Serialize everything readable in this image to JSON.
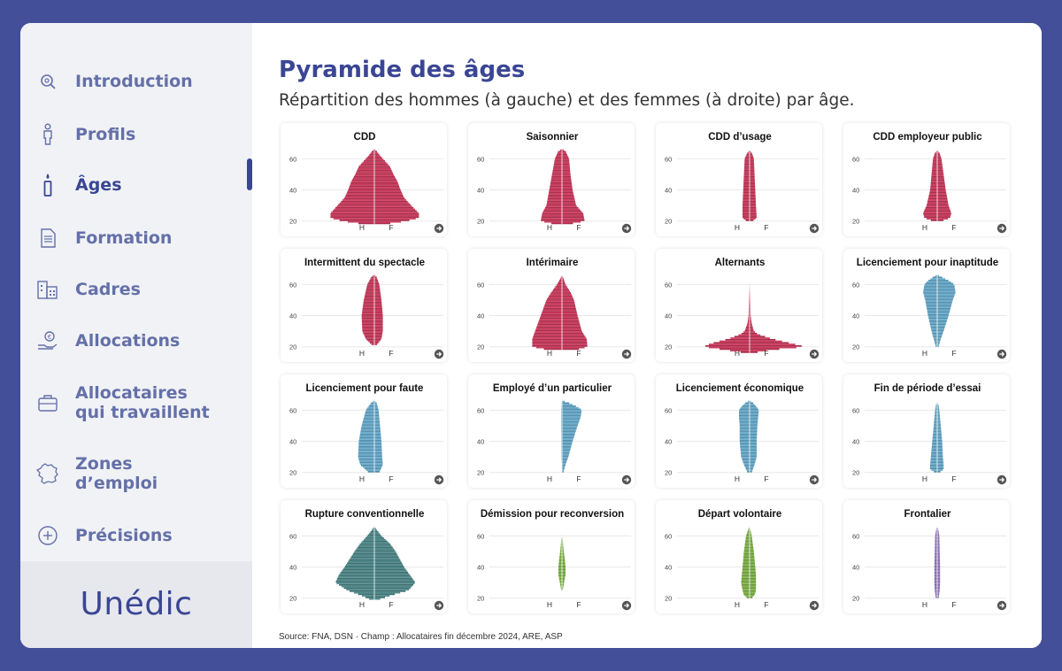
{
  "nav": [
    {
      "key": "introduction",
      "label": "Introduction",
      "label2": "",
      "icon": "search-icon",
      "active": false
    },
    {
      "key": "profils",
      "label": "Profils",
      "label2": "",
      "icon": "person-icon",
      "active": false
    },
    {
      "key": "ages",
      "label": "Âges",
      "label2": "",
      "icon": "candle-icon",
      "active": true
    },
    {
      "key": "formation",
      "label": "Formation",
      "label2": "",
      "icon": "document-icon",
      "active": false
    },
    {
      "key": "cadres",
      "label": "Cadres",
      "label2": "",
      "icon": "building-icon",
      "active": false
    },
    {
      "key": "allocations",
      "label": "Allocations",
      "label2": "",
      "icon": "hand-coin-icon",
      "active": false
    },
    {
      "key": "allocataires",
      "label": "Allocataires",
      "label2": "qui travaillent",
      "icon": "briefcase-icon",
      "active": false
    },
    {
      "key": "zones",
      "label": "Zones",
      "label2": "d’emploi",
      "icon": "france-map-icon",
      "active": false
    },
    {
      "key": "precisions",
      "label": "Précisions",
      "label2": "",
      "icon": "plus-circle-icon",
      "active": false
    }
  ],
  "logo": "Unédic",
  "header": {
    "title": "Pyramide des âges",
    "subtitle": "Répartition des hommes (à gauche) et des femmes (à droite) par âge."
  },
  "source": "Source: FNA, DSN · Champ : Allocataires fin décembre 2024, ARE, ASP",
  "colors": {
    "pink": "#cf3a5e",
    "blue": "#6aaed0",
    "teal": "#4f8a8b",
    "green": "#82b74b",
    "purple": "#9a7cc2",
    "accent": "#3a4694",
    "frame": "#434f99"
  },
  "chart_data": [
    {
      "type": "pyramid",
      "title": "CDD",
      "color": "pink",
      "male_label": "H",
      "female_label": "F",
      "yticks": [
        20,
        40,
        60
      ],
      "ylim": [
        17,
        67
      ],
      "ages": [
        18,
        20,
        22,
        25,
        30,
        35,
        40,
        45,
        50,
        55,
        58,
        62,
        65,
        66
      ],
      "male": [
        0.15,
        0.45,
        0.62,
        0.62,
        0.52,
        0.42,
        0.37,
        0.33,
        0.27,
        0.22,
        0.16,
        0.08,
        0.03,
        0
      ],
      "female": [
        0.15,
        0.45,
        0.63,
        0.63,
        0.52,
        0.42,
        0.37,
        0.33,
        0.27,
        0.22,
        0.16,
        0.08,
        0.03,
        0
      ]
    },
    {
      "type": "pyramid",
      "title": "Saisonnier",
      "color": "pink",
      "male_label": "H",
      "female_label": "F",
      "yticks": [
        20,
        40,
        60
      ],
      "ylim": [
        17,
        67
      ],
      "ages": [
        18,
        20,
        25,
        30,
        40,
        50,
        60,
        65,
        66
      ],
      "male": [
        0.1,
        0.3,
        0.28,
        0.22,
        0.18,
        0.14,
        0.1,
        0.05,
        0
      ],
      "female": [
        0.1,
        0.32,
        0.3,
        0.2,
        0.15,
        0.12,
        0.1,
        0.05,
        0
      ]
    },
    {
      "type": "pyramid",
      "title": "CDD d’usage",
      "color": "pink",
      "male_label": "H",
      "female_label": "F",
      "yticks": [
        20,
        40,
        60
      ],
      "ylim": [
        17,
        67
      ],
      "ages": [
        20,
        22,
        30,
        40,
        50,
        60,
        64,
        65
      ],
      "male": [
        0.04,
        0.1,
        0.1,
        0.09,
        0.08,
        0.07,
        0.03,
        0
      ],
      "female": [
        0.04,
        0.1,
        0.09,
        0.08,
        0.07,
        0.06,
        0.03,
        0
      ]
    },
    {
      "type": "pyramid",
      "title": "CDD employeur public",
      "color": "pink",
      "male_label": "H",
      "female_label": "F",
      "yticks": [
        20,
        40,
        60
      ],
      "ylim": [
        17,
        67
      ],
      "ages": [
        20,
        22,
        25,
        30,
        40,
        50,
        60,
        64,
        65
      ],
      "male": [
        0.06,
        0.18,
        0.2,
        0.15,
        0.1,
        0.08,
        0.06,
        0.03,
        0
      ],
      "female": [
        0.06,
        0.18,
        0.2,
        0.16,
        0.12,
        0.09,
        0.06,
        0.03,
        0
      ]
    },
    {
      "type": "pyramid",
      "title": "Intermittent du spectacle",
      "color": "pink",
      "male_label": "H",
      "female_label": "F",
      "yticks": [
        20,
        40,
        60
      ],
      "ylim": [
        17,
        67
      ],
      "ages": [
        21,
        25,
        30,
        40,
        50,
        60,
        65,
        66
      ],
      "male": [
        0.03,
        0.12,
        0.17,
        0.18,
        0.15,
        0.1,
        0.04,
        0
      ],
      "female": [
        0.03,
        0.1,
        0.12,
        0.12,
        0.1,
        0.07,
        0.03,
        0
      ]
    },
    {
      "type": "pyramid",
      "title": "Intérimaire",
      "color": "pink",
      "male_label": "H",
      "female_label": "F",
      "yticks": [
        20,
        40,
        60
      ],
      "ylim": [
        17,
        67
      ],
      "ages": [
        18,
        20,
        25,
        30,
        40,
        50,
        55,
        60,
        64,
        66
      ],
      "male": [
        0.2,
        0.42,
        0.42,
        0.38,
        0.3,
        0.22,
        0.15,
        0.07,
        0.02,
        0
      ],
      "female": [
        0.2,
        0.36,
        0.35,
        0.28,
        0.22,
        0.17,
        0.12,
        0.05,
        0.02,
        0
      ]
    },
    {
      "type": "pyramid",
      "title": "Alternants",
      "color": "pink",
      "male_label": "H",
      "female_label": "F",
      "yticks": [
        20,
        40,
        60
      ],
      "ylim": [
        17,
        67
      ],
      "ages": [
        16,
        18,
        20,
        22,
        25,
        28,
        30,
        35,
        40,
        50,
        60,
        62
      ],
      "male": [
        0.05,
        0.35,
        0.65,
        0.55,
        0.3,
        0.13,
        0.07,
        0.03,
        0.015,
        0.01,
        0.005,
        0
      ],
      "female": [
        0.05,
        0.3,
        0.78,
        0.6,
        0.32,
        0.12,
        0.06,
        0.03,
        0.015,
        0.01,
        0.005,
        0
      ]
    },
    {
      "type": "pyramid",
      "title": "Licenciement pour inaptitude",
      "color": "blue",
      "male_label": "H",
      "female_label": "F",
      "yticks": [
        20,
        40,
        60
      ],
      "ylim": [
        17,
        67
      ],
      "ages": [
        20,
        25,
        30,
        40,
        50,
        55,
        60,
        62,
        65,
        66
      ],
      "male": [
        0.02,
        0.05,
        0.08,
        0.13,
        0.17,
        0.2,
        0.18,
        0.14,
        0.05,
        0
      ],
      "female": [
        0.02,
        0.05,
        0.09,
        0.16,
        0.22,
        0.26,
        0.24,
        0.18,
        0.05,
        0
      ]
    },
    {
      "type": "pyramid",
      "title": "Licenciement pour faute",
      "color": "blue",
      "male_label": "H",
      "female_label": "F",
      "yticks": [
        20,
        40,
        60
      ],
      "ylim": [
        17,
        67
      ],
      "ages": [
        20,
        25,
        30,
        40,
        50,
        60,
        65,
        66
      ],
      "male": [
        0.08,
        0.2,
        0.23,
        0.22,
        0.18,
        0.12,
        0.04,
        0
      ],
      "female": [
        0.07,
        0.12,
        0.11,
        0.1,
        0.08,
        0.06,
        0.03,
        0
      ]
    },
    {
      "type": "pyramid",
      "title": "Employé d’un particulier",
      "color": "blue",
      "male_label": "H",
      "female_label": "F",
      "yticks": [
        20,
        40,
        60
      ],
      "ylim": [
        17,
        67
      ],
      "ages": [
        20,
        25,
        30,
        40,
        50,
        55,
        60,
        62,
        65,
        66
      ],
      "male": [
        0.005,
        0.005,
        0.01,
        0.01,
        0.012,
        0.012,
        0.012,
        0.01,
        0.005,
        0
      ],
      "female": [
        0.02,
        0.05,
        0.09,
        0.15,
        0.22,
        0.26,
        0.28,
        0.22,
        0.08,
        0
      ]
    },
    {
      "type": "pyramid",
      "title": "Licenciement économique",
      "color": "blue",
      "male_label": "H",
      "female_label": "F",
      "yticks": [
        20,
        40,
        60
      ],
      "ylim": [
        17,
        67
      ],
      "ages": [
        20,
        25,
        30,
        40,
        50,
        55,
        60,
        62,
        65,
        66
      ],
      "male": [
        0.03,
        0.08,
        0.12,
        0.14,
        0.14,
        0.15,
        0.15,
        0.12,
        0.05,
        0
      ],
      "female": [
        0.03,
        0.07,
        0.1,
        0.1,
        0.11,
        0.12,
        0.13,
        0.1,
        0.04,
        0
      ]
    },
    {
      "type": "pyramid",
      "title": "Fin de période d’essai",
      "color": "blue",
      "male_label": "H",
      "female_label": "F",
      "yticks": [
        20,
        40,
        60
      ],
      "ylim": [
        17,
        67
      ],
      "ages": [
        20,
        22,
        25,
        30,
        40,
        50,
        60,
        64,
        65
      ],
      "male": [
        0.03,
        0.1,
        0.1,
        0.09,
        0.07,
        0.05,
        0.03,
        0.015,
        0
      ],
      "female": [
        0.03,
        0.09,
        0.09,
        0.08,
        0.07,
        0.05,
        0.03,
        0.015,
        0
      ]
    },
    {
      "type": "pyramid",
      "title": "Rupture conventionnelle",
      "color": "teal",
      "male_label": "H",
      "female_label": "F",
      "yticks": [
        20,
        40,
        60
      ],
      "ylim": [
        17,
        67
      ],
      "ages": [
        19,
        22,
        25,
        30,
        35,
        40,
        45,
        50,
        55,
        60,
        64,
        66
      ],
      "male": [
        0.05,
        0.2,
        0.38,
        0.55,
        0.5,
        0.42,
        0.35,
        0.28,
        0.2,
        0.1,
        0.03,
        0
      ],
      "female": [
        0.05,
        0.25,
        0.48,
        0.58,
        0.5,
        0.42,
        0.36,
        0.3,
        0.22,
        0.1,
        0.03,
        0
      ]
    },
    {
      "type": "pyramid",
      "title": "Démission pour reconversion",
      "color": "green",
      "male_label": "H",
      "female_label": "F",
      "yticks": [
        20,
        40,
        60
      ],
      "ylim": [
        17,
        67
      ],
      "ages": [
        25,
        30,
        35,
        40,
        45,
        50,
        55,
        60,
        62
      ],
      "male": [
        0.01,
        0.03,
        0.05,
        0.05,
        0.04,
        0.025,
        0.015,
        0.005,
        0
      ],
      "female": [
        0.01,
        0.03,
        0.05,
        0.05,
        0.04,
        0.025,
        0.015,
        0.005,
        0
      ]
    },
    {
      "type": "pyramid",
      "title": "Départ volontaire",
      "color": "green",
      "male_label": "H",
      "female_label": "F",
      "yticks": [
        20,
        40,
        60
      ],
      "ylim": [
        17,
        67
      ],
      "ages": [
        20,
        22,
        25,
        30,
        35,
        40,
        50,
        60,
        64,
        66
      ],
      "male": [
        0.03,
        0.08,
        0.1,
        0.12,
        0.11,
        0.1,
        0.08,
        0.05,
        0.02,
        0
      ],
      "female": [
        0.03,
        0.07,
        0.09,
        0.09,
        0.09,
        0.08,
        0.06,
        0.03,
        0.01,
        0
      ]
    },
    {
      "type": "pyramid",
      "title": "Frontalier",
      "color": "purple",
      "male_label": "H",
      "female_label": "F",
      "yticks": [
        20,
        40,
        60
      ],
      "ylim": [
        17,
        67
      ],
      "ages": [
        20,
        25,
        30,
        40,
        50,
        60,
        64,
        66
      ],
      "male": [
        0.02,
        0.035,
        0.04,
        0.04,
        0.035,
        0.03,
        0.015,
        0
      ],
      "female": [
        0.02,
        0.035,
        0.04,
        0.04,
        0.035,
        0.03,
        0.015,
        0
      ]
    }
  ]
}
